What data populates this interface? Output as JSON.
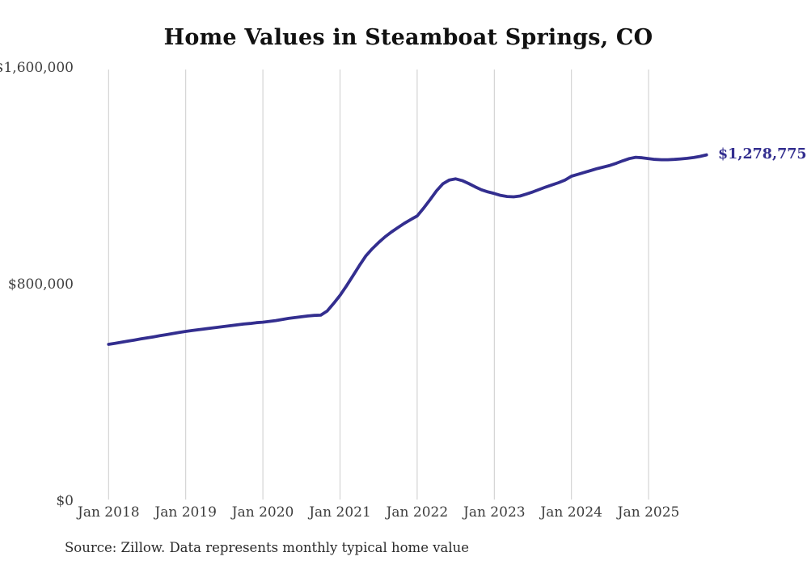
{
  "chart": {
    "title": "Home Values in Steamboat Springs, CO",
    "source": "Source: Zillow. Data represents monthly typical home value",
    "end_value_label": "$1,278,775",
    "colors": {
      "line": "#332e8f",
      "end_label": "#332e8f",
      "grid": "#cccccc",
      "axis_text": "#3d3d3d",
      "title_text": "#111111"
    },
    "y_ticks": [
      {
        "label": "$1,600,000",
        "value": 1600000
      },
      {
        "label": "$800,000",
        "value": 800000
      },
      {
        "label": "$0",
        "value": 0
      }
    ],
    "x_ticks": [
      {
        "label": "Jan 2018",
        "month_index": 0
      },
      {
        "label": "Jan 2019",
        "month_index": 12
      },
      {
        "label": "Jan 2020",
        "month_index": 24
      },
      {
        "label": "Jan 2021",
        "month_index": 36
      },
      {
        "label": "Jan 2022",
        "month_index": 48
      },
      {
        "label": "Jan 2023",
        "month_index": 60
      },
      {
        "label": "Jan 2024",
        "month_index": 72
      },
      {
        "label": "Jan 2025",
        "month_index": 84
      }
    ]
  },
  "chart_data": {
    "type": "line",
    "title": "Home Values in Steamboat Springs, CO",
    "xlabel": "",
    "ylabel": "",
    "ylim": [
      0,
      1600000
    ],
    "grid": "vertical-only",
    "legend": "none",
    "end_annotation": "$1,278,775",
    "x_tick_labels": [
      "Jan 2018",
      "Jan 2019",
      "Jan 2020",
      "Jan 2021",
      "Jan 2022",
      "Jan 2023",
      "Jan 2024",
      "Jan 2025"
    ],
    "y_tick_labels": [
      "$0",
      "$800,000",
      "$1,600,000"
    ],
    "x": [
      "2018-01",
      "2018-02",
      "2018-03",
      "2018-04",
      "2018-05",
      "2018-06",
      "2018-07",
      "2018-08",
      "2018-09",
      "2018-10",
      "2018-11",
      "2018-12",
      "2019-01",
      "2019-02",
      "2019-03",
      "2019-04",
      "2019-05",
      "2019-06",
      "2019-07",
      "2019-08",
      "2019-09",
      "2019-10",
      "2019-11",
      "2019-12",
      "2020-01",
      "2020-02",
      "2020-03",
      "2020-04",
      "2020-05",
      "2020-06",
      "2020-07",
      "2020-08",
      "2020-09",
      "2020-10",
      "2020-11",
      "2020-12",
      "2021-01",
      "2021-02",
      "2021-03",
      "2021-04",
      "2021-05",
      "2021-06",
      "2021-07",
      "2021-08",
      "2021-09",
      "2021-10",
      "2021-11",
      "2021-12",
      "2022-01",
      "2022-02",
      "2022-03",
      "2022-04",
      "2022-05",
      "2022-06",
      "2022-07",
      "2022-08",
      "2022-09",
      "2022-10",
      "2022-11",
      "2022-12",
      "2023-01",
      "2023-02",
      "2023-03",
      "2023-04",
      "2023-05",
      "2023-06",
      "2023-07",
      "2023-08",
      "2023-09",
      "2023-10",
      "2023-11",
      "2023-12",
      "2024-01",
      "2024-02",
      "2024-03",
      "2024-04",
      "2024-05",
      "2024-06",
      "2024-07",
      "2024-08",
      "2024-09",
      "2024-10",
      "2024-11",
      "2024-12",
      "2025-01",
      "2025-02",
      "2025-03",
      "2025-04",
      "2025-05",
      "2025-06",
      "2025-07",
      "2025-08",
      "2025-09",
      "2025-10"
    ],
    "values": [
      579000,
      583000,
      587000,
      591000,
      595000,
      599000,
      603000,
      607000,
      611000,
      615000,
      619000,
      623000,
      627000,
      630000,
      633000,
      636000,
      639000,
      642000,
      645000,
      648000,
      651000,
      654000,
      656000,
      659000,
      661000,
      664000,
      667000,
      671000,
      675000,
      678000,
      681000,
      684000,
      686000,
      687000,
      702000,
      730000,
      760000,
      795000,
      832000,
      870000,
      905000,
      932000,
      955000,
      976000,
      994000,
      1010000,
      1026000,
      1040000,
      1053000,
      1082000,
      1113000,
      1146000,
      1172000,
      1186000,
      1190000,
      1184000,
      1173000,
      1161000,
      1150000,
      1142000,
      1136000,
      1129000,
      1125000,
      1124000,
      1127000,
      1134000,
      1142000,
      1151000,
      1160000,
      1168000,
      1176000,
      1186000,
      1200000,
      1207000,
      1214000,
      1221000,
      1228000,
      1234000,
      1240000,
      1248000,
      1257000,
      1265000,
      1270000,
      1268000,
      1265000,
      1262000,
      1261000,
      1261000,
      1262000,
      1264000,
      1266000,
      1269000,
      1273000,
      1278775
    ]
  }
}
